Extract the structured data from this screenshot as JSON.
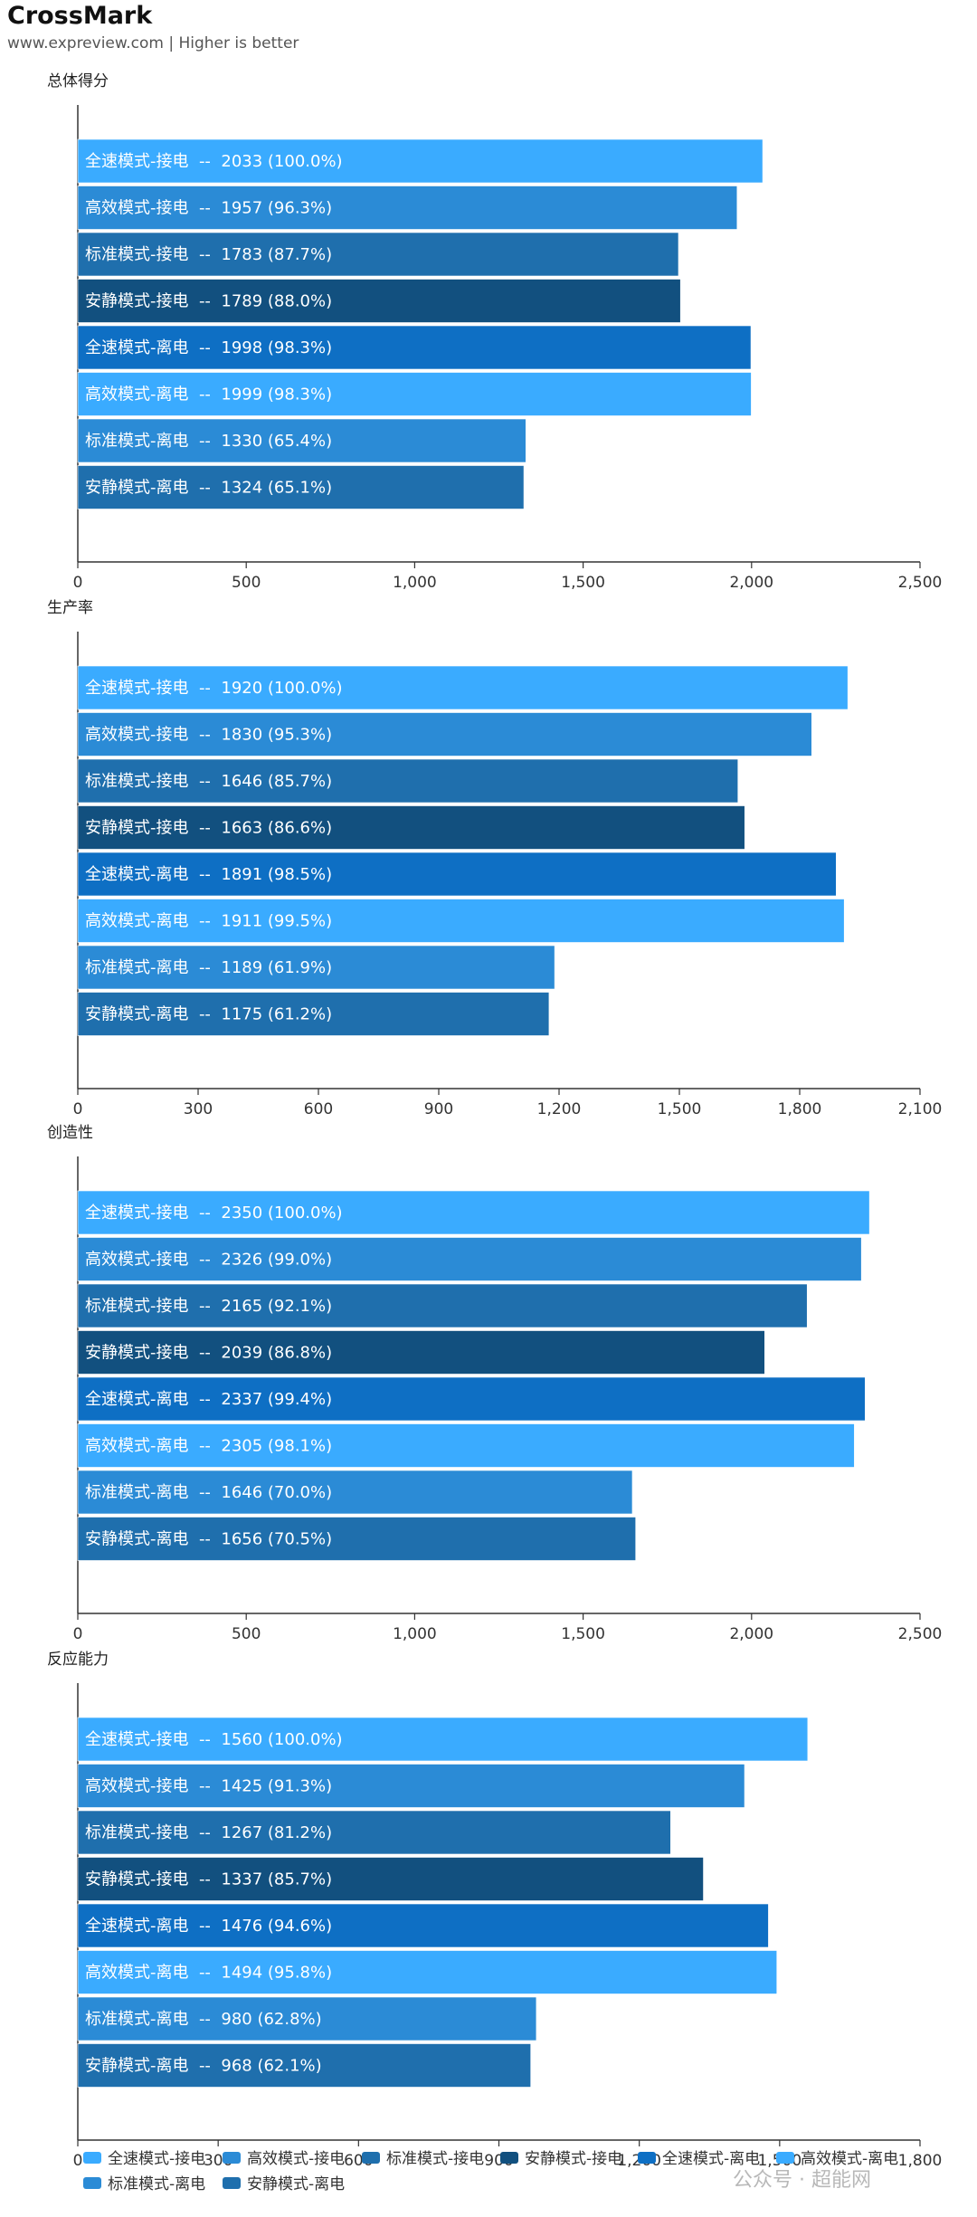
{
  "header": {
    "title": "CrossMark",
    "subtitle": "www.expreview.com | Higher is better"
  },
  "watermark": "公众号 · 超能网",
  "colors": {
    "全速模式-接电": "#3aabff",
    "高效模式-接电": "#2b8bd6",
    "标准模式-接电": "#1f6fad",
    "安静模式-接电": "#12507f",
    "全速模式-离电": "#0e6fc4",
    "高效模式-离电": "#3aabff",
    "标准模式-离电": "#2b8bd6",
    "安静模式-离电": "#1f6fad"
  },
  "chart_data": [
    {
      "type": "bar",
      "orientation": "horizontal",
      "title": "总体得分",
      "categories": [
        "全速模式-接电",
        "高效模式-接电",
        "标准模式-接电",
        "安静模式-接电",
        "全速模式-离电",
        "高效模式-离电",
        "标准模式-离电",
        "安静模式-离电"
      ],
      "values": [
        2033,
        1957,
        1783,
        1789,
        1998,
        1999,
        1330,
        1324
      ],
      "labels": [
        "全速模式-接电  --  2033 (100.0%)",
        "高效模式-接电  --  1957 (96.3%)",
        "标准模式-接电  --  1783 (87.7%)",
        "安静模式-接电  --  1789 (88.0%)",
        "全速模式-离电  --  1998 (98.3%)",
        "高效模式-离电  --  1999 (98.3%)",
        "标准模式-离电  --  1330 (65.4%)",
        "安静模式-离电  --  1324 (65.1%)"
      ],
      "xlim": [
        0,
        2500
      ],
      "ticks": [
        0,
        500,
        1000,
        1500,
        2000,
        2500
      ],
      "tick_labels": [
        "0",
        "500",
        "1,000",
        "1,500",
        "2,000",
        "2,500"
      ]
    },
    {
      "type": "bar",
      "orientation": "horizontal",
      "title": "生产率",
      "categories": [
        "全速模式-接电",
        "高效模式-接电",
        "标准模式-接电",
        "安静模式-接电",
        "全速模式-离电",
        "高效模式-离电",
        "标准模式-离电",
        "安静模式-离电"
      ],
      "values": [
        1920,
        1830,
        1646,
        1663,
        1891,
        1911,
        1189,
        1175
      ],
      "labels": [
        "全速模式-接电  --  1920 (100.0%)",
        "高效模式-接电  --  1830 (95.3%)",
        "标准模式-接电  --  1646 (85.7%)",
        "安静模式-接电  --  1663 (86.6%)",
        "全速模式-离电  --  1891 (98.5%)",
        "高效模式-离电  --  1911 (99.5%)",
        "标准模式-离电  --  1189 (61.9%)",
        "安静模式-离电  --  1175 (61.2%)"
      ],
      "xlim": [
        0,
        2100
      ],
      "ticks": [
        0,
        300,
        600,
        900,
        1200,
        1500,
        1800,
        2100
      ],
      "tick_labels": [
        "0",
        "300",
        "600",
        "900",
        "1,200",
        "1,500",
        "1,800",
        "2,100"
      ]
    },
    {
      "type": "bar",
      "orientation": "horizontal",
      "title": "创造性",
      "categories": [
        "全速模式-接电",
        "高效模式-接电",
        "标准模式-接电",
        "安静模式-接电",
        "全速模式-离电",
        "高效模式-离电",
        "标准模式-离电",
        "安静模式-离电"
      ],
      "values": [
        2350,
        2326,
        2165,
        2039,
        2337,
        2305,
        1646,
        1656
      ],
      "labels": [
        "全速模式-接电  --  2350 (100.0%)",
        "高效模式-接电  --  2326 (99.0%)",
        "标准模式-接电  --  2165 (92.1%)",
        "安静模式-接电  --  2039 (86.8%)",
        "全速模式-离电  --  2337 (99.4%)",
        "高效模式-离电  --  2305 (98.1%)",
        "标准模式-离电  --  1646 (70.0%)",
        "安静模式-离电  --  1656 (70.5%)"
      ],
      "xlim": [
        0,
        2500
      ],
      "ticks": [
        0,
        500,
        1000,
        1500,
        2000,
        2500
      ],
      "tick_labels": [
        "0",
        "500",
        "1,000",
        "1,500",
        "2,000",
        "2,500"
      ]
    },
    {
      "type": "bar",
      "orientation": "horizontal",
      "title": "反应能力",
      "categories": [
        "全速模式-接电",
        "高效模式-接电",
        "标准模式-接电",
        "安静模式-接电",
        "全速模式-离电",
        "高效模式-离电",
        "标准模式-离电",
        "安静模式-离电"
      ],
      "values": [
        1560,
        1425,
        1267,
        1337,
        1476,
        1494,
        980,
        968
      ],
      "labels": [
        "全速模式-接电  --  1560 (100.0%)",
        "高效模式-接电  --  1425 (91.3%)",
        "标准模式-接电  --  1267 (81.2%)",
        "安静模式-接电  --  1337 (85.7%)",
        "全速模式-离电  --  1476 (94.6%)",
        "高效模式-离电  --  1494 (95.8%)",
        "标准模式-离电  --  980 (62.8%)",
        "安静模式-离电  --  968 (62.1%)"
      ],
      "xlim": [
        0,
        1800
      ],
      "ticks": [
        0,
        300,
        600,
        900,
        1200,
        1500,
        1800
      ],
      "tick_labels": [
        "0",
        "300",
        "600",
        "900",
        "1,200",
        "1,500",
        "1,800"
      ]
    }
  ],
  "legend": {
    "placement": "bottom",
    "items": [
      "全速模式-接电",
      "高效模式-接电",
      "标准模式-接电",
      "安静模式-接电",
      "全速模式-离电",
      "高效模式-离电",
      "标准模式-离电",
      "安静模式-离电"
    ]
  }
}
